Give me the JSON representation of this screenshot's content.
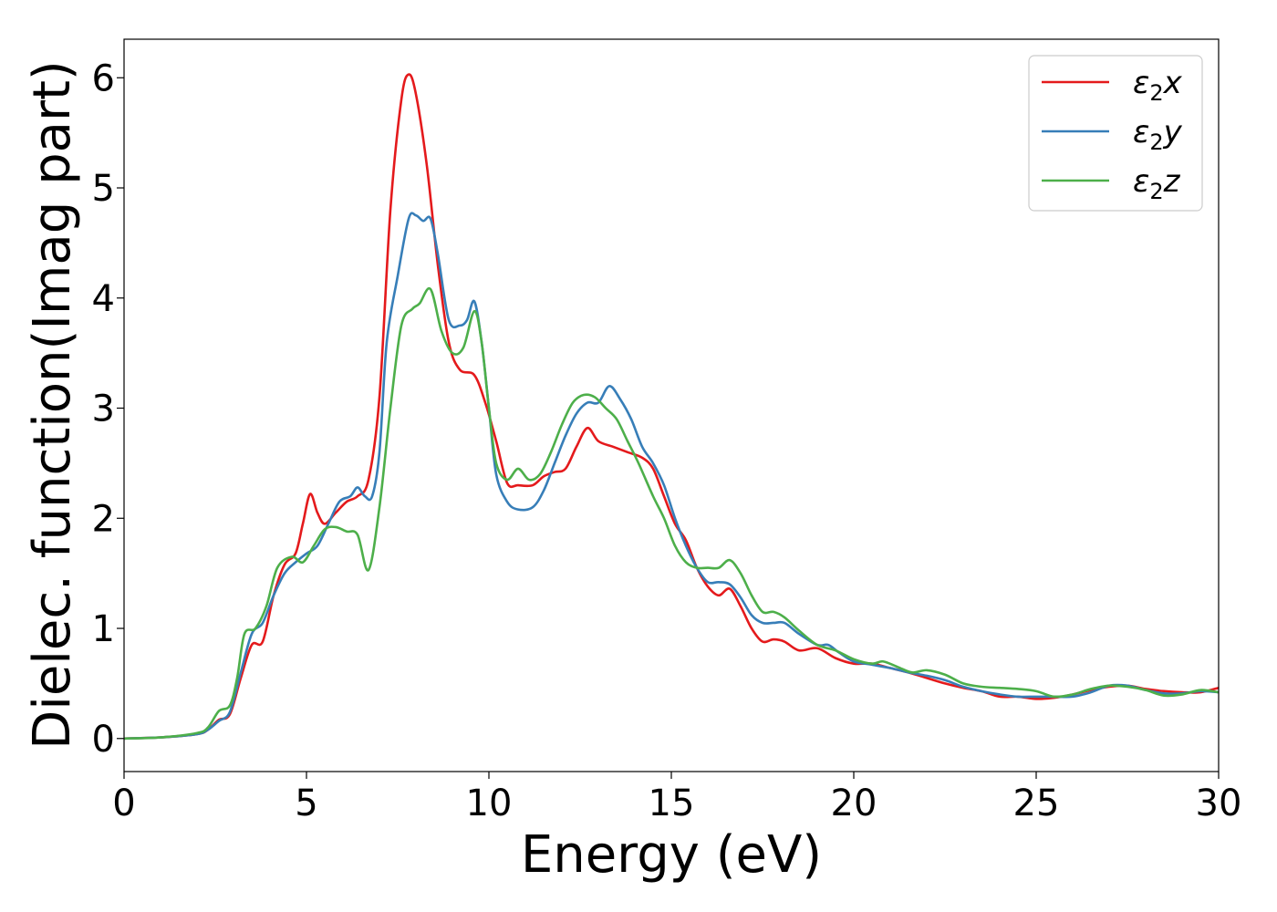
{
  "chart_data": {
    "type": "line",
    "title": "",
    "xlabel": "Energy (eV)",
    "ylabel": "Dielec. function(Imag part)",
    "xlim": [
      0,
      30
    ],
    "ylim": [
      -0.3,
      6.35
    ],
    "xticks": [
      "0",
      "5",
      "10",
      "15",
      "20",
      "25",
      "30"
    ],
    "yticks": [
      "0",
      "1",
      "2",
      "3",
      "4",
      "5",
      "6"
    ],
    "grid": false,
    "legend_position": "top-right",
    "series": [
      {
        "name": "ε2x",
        "legend": {
          "base": "ε",
          "sub": "2",
          "suffix": "x"
        },
        "color": "#e41a1c",
        "points": [
          [
            0,
            0
          ],
          [
            1,
            0.01
          ],
          [
            2,
            0.04
          ],
          [
            2.3,
            0.08
          ],
          [
            2.6,
            0.17
          ],
          [
            2.9,
            0.22
          ],
          [
            3.2,
            0.55
          ],
          [
            3.5,
            0.85
          ],
          [
            3.8,
            0.88
          ],
          [
            4.1,
            1.3
          ],
          [
            4.4,
            1.58
          ],
          [
            4.7,
            1.68
          ],
          [
            4.9,
            1.95
          ],
          [
            5.1,
            2.22
          ],
          [
            5.3,
            2.05
          ],
          [
            5.5,
            1.95
          ],
          [
            5.8,
            2.05
          ],
          [
            6.1,
            2.15
          ],
          [
            6.4,
            2.2
          ],
          [
            6.7,
            2.35
          ],
          [
            7.0,
            3.1
          ],
          [
            7.3,
            4.8
          ],
          [
            7.6,
            5.8
          ],
          [
            7.8,
            6.03
          ],
          [
            8.0,
            5.85
          ],
          [
            8.3,
            5.2
          ],
          [
            8.6,
            4.3
          ],
          [
            8.9,
            3.6
          ],
          [
            9.2,
            3.35
          ],
          [
            9.6,
            3.3
          ],
          [
            9.9,
            3.05
          ],
          [
            10.2,
            2.7
          ],
          [
            10.5,
            2.32
          ],
          [
            10.8,
            2.3
          ],
          [
            11.2,
            2.3
          ],
          [
            11.5,
            2.38
          ],
          [
            11.8,
            2.42
          ],
          [
            12.1,
            2.45
          ],
          [
            12.4,
            2.65
          ],
          [
            12.7,
            2.82
          ],
          [
            13.0,
            2.7
          ],
          [
            13.4,
            2.65
          ],
          [
            13.8,
            2.6
          ],
          [
            14.2,
            2.55
          ],
          [
            14.5,
            2.45
          ],
          [
            14.8,
            2.2
          ],
          [
            15.1,
            1.95
          ],
          [
            15.4,
            1.8
          ],
          [
            15.7,
            1.55
          ],
          [
            16.0,
            1.38
          ],
          [
            16.3,
            1.3
          ],
          [
            16.6,
            1.36
          ],
          [
            16.9,
            1.2
          ],
          [
            17.2,
            1.0
          ],
          [
            17.5,
            0.88
          ],
          [
            17.8,
            0.9
          ],
          [
            18.1,
            0.88
          ],
          [
            18.5,
            0.8
          ],
          [
            19.0,
            0.82
          ],
          [
            19.5,
            0.73
          ],
          [
            20.0,
            0.68
          ],
          [
            20.5,
            0.68
          ],
          [
            21.0,
            0.64
          ],
          [
            21.5,
            0.6
          ],
          [
            22.0,
            0.55
          ],
          [
            22.5,
            0.5
          ],
          [
            23.0,
            0.46
          ],
          [
            23.5,
            0.43
          ],
          [
            24.0,
            0.38
          ],
          [
            24.5,
            0.38
          ],
          [
            25.0,
            0.36
          ],
          [
            25.5,
            0.37
          ],
          [
            26.0,
            0.4
          ],
          [
            26.5,
            0.44
          ],
          [
            27.0,
            0.47
          ],
          [
            27.5,
            0.48
          ],
          [
            28.0,
            0.45
          ],
          [
            28.5,
            0.43
          ],
          [
            29.0,
            0.42
          ],
          [
            29.5,
            0.42
          ],
          [
            30.0,
            0.46
          ]
        ]
      },
      {
        "name": "ε2y",
        "legend": {
          "base": "ε",
          "sub": "2",
          "suffix": "y"
        },
        "color": "#377eb8",
        "points": [
          [
            0,
            0
          ],
          [
            1,
            0.01
          ],
          [
            2,
            0.04
          ],
          [
            2.3,
            0.08
          ],
          [
            2.6,
            0.16
          ],
          [
            2.9,
            0.24
          ],
          [
            3.2,
            0.6
          ],
          [
            3.5,
            0.95
          ],
          [
            3.8,
            1.05
          ],
          [
            4.1,
            1.3
          ],
          [
            4.4,
            1.5
          ],
          [
            4.7,
            1.6
          ],
          [
            5.0,
            1.68
          ],
          [
            5.3,
            1.75
          ],
          [
            5.6,
            1.95
          ],
          [
            5.9,
            2.15
          ],
          [
            6.2,
            2.2
          ],
          [
            6.4,
            2.28
          ],
          [
            6.6,
            2.2
          ],
          [
            6.8,
            2.2
          ],
          [
            7.0,
            2.6
          ],
          [
            7.2,
            3.6
          ],
          [
            7.5,
            4.2
          ],
          [
            7.8,
            4.72
          ],
          [
            8.0,
            4.75
          ],
          [
            8.2,
            4.7
          ],
          [
            8.4,
            4.72
          ],
          [
            8.6,
            4.4
          ],
          [
            8.9,
            3.8
          ],
          [
            9.2,
            3.75
          ],
          [
            9.4,
            3.8
          ],
          [
            9.6,
            3.97
          ],
          [
            9.8,
            3.6
          ],
          [
            10.0,
            3.0
          ],
          [
            10.2,
            2.4
          ],
          [
            10.5,
            2.15
          ],
          [
            10.8,
            2.08
          ],
          [
            11.2,
            2.1
          ],
          [
            11.5,
            2.25
          ],
          [
            11.8,
            2.5
          ],
          [
            12.1,
            2.75
          ],
          [
            12.4,
            2.95
          ],
          [
            12.7,
            3.05
          ],
          [
            13.0,
            3.05
          ],
          [
            13.3,
            3.2
          ],
          [
            13.6,
            3.08
          ],
          [
            13.9,
            2.9
          ],
          [
            14.2,
            2.65
          ],
          [
            14.5,
            2.5
          ],
          [
            14.8,
            2.3
          ],
          [
            15.1,
            2.0
          ],
          [
            15.4,
            1.75
          ],
          [
            15.7,
            1.55
          ],
          [
            16.0,
            1.42
          ],
          [
            16.3,
            1.42
          ],
          [
            16.6,
            1.4
          ],
          [
            16.9,
            1.28
          ],
          [
            17.2,
            1.12
          ],
          [
            17.5,
            1.05
          ],
          [
            17.8,
            1.05
          ],
          [
            18.1,
            1.05
          ],
          [
            18.5,
            0.95
          ],
          [
            19.0,
            0.85
          ],
          [
            19.3,
            0.85
          ],
          [
            19.6,
            0.78
          ],
          [
            20.0,
            0.7
          ],
          [
            20.5,
            0.67
          ],
          [
            21.0,
            0.64
          ],
          [
            21.5,
            0.6
          ],
          [
            22.0,
            0.57
          ],
          [
            22.5,
            0.53
          ],
          [
            23.0,
            0.47
          ],
          [
            23.5,
            0.43
          ],
          [
            24.0,
            0.4
          ],
          [
            24.5,
            0.38
          ],
          [
            25.0,
            0.38
          ],
          [
            25.5,
            0.38
          ],
          [
            26.0,
            0.38
          ],
          [
            26.5,
            0.42
          ],
          [
            27.0,
            0.48
          ],
          [
            27.5,
            0.48
          ],
          [
            28.0,
            0.44
          ],
          [
            28.5,
            0.41
          ],
          [
            29.0,
            0.41
          ],
          [
            29.5,
            0.43
          ],
          [
            30.0,
            0.42
          ]
        ]
      },
      {
        "name": "ε2z",
        "legend": {
          "base": "ε",
          "sub": "2",
          "suffix": "z"
        },
        "color": "#4daf4a",
        "points": [
          [
            0,
            0
          ],
          [
            1,
            0.01
          ],
          [
            2,
            0.05
          ],
          [
            2.3,
            0.1
          ],
          [
            2.6,
            0.25
          ],
          [
            2.9,
            0.3
          ],
          [
            3.1,
            0.55
          ],
          [
            3.3,
            0.95
          ],
          [
            3.6,
            1.0
          ],
          [
            3.9,
            1.2
          ],
          [
            4.2,
            1.55
          ],
          [
            4.6,
            1.65
          ],
          [
            4.9,
            1.6
          ],
          [
            5.2,
            1.75
          ],
          [
            5.5,
            1.9
          ],
          [
            5.8,
            1.92
          ],
          [
            6.1,
            1.88
          ],
          [
            6.4,
            1.85
          ],
          [
            6.7,
            1.53
          ],
          [
            7.0,
            2.1
          ],
          [
            7.3,
            3.0
          ],
          [
            7.6,
            3.75
          ],
          [
            7.9,
            3.9
          ],
          [
            8.1,
            3.95
          ],
          [
            8.4,
            4.08
          ],
          [
            8.7,
            3.7
          ],
          [
            9.0,
            3.5
          ],
          [
            9.3,
            3.55
          ],
          [
            9.6,
            3.88
          ],
          [
            9.8,
            3.6
          ],
          [
            10.0,
            3.0
          ],
          [
            10.2,
            2.5
          ],
          [
            10.5,
            2.35
          ],
          [
            10.8,
            2.45
          ],
          [
            11.1,
            2.35
          ],
          [
            11.4,
            2.4
          ],
          [
            11.7,
            2.6
          ],
          [
            12.0,
            2.85
          ],
          [
            12.3,
            3.05
          ],
          [
            12.6,
            3.12
          ],
          [
            12.9,
            3.1
          ],
          [
            13.2,
            3.0
          ],
          [
            13.5,
            2.9
          ],
          [
            13.8,
            2.7
          ],
          [
            14.1,
            2.5
          ],
          [
            14.5,
            2.2
          ],
          [
            14.8,
            2.0
          ],
          [
            15.1,
            1.75
          ],
          [
            15.4,
            1.6
          ],
          [
            15.7,
            1.55
          ],
          [
            16.0,
            1.55
          ],
          [
            16.3,
            1.55
          ],
          [
            16.6,
            1.62
          ],
          [
            16.9,
            1.5
          ],
          [
            17.2,
            1.3
          ],
          [
            17.5,
            1.15
          ],
          [
            17.8,
            1.15
          ],
          [
            18.1,
            1.1
          ],
          [
            18.5,
            0.98
          ],
          [
            19.0,
            0.85
          ],
          [
            19.5,
            0.8
          ],
          [
            20.0,
            0.72
          ],
          [
            20.5,
            0.68
          ],
          [
            20.8,
            0.7
          ],
          [
            21.2,
            0.65
          ],
          [
            21.6,
            0.6
          ],
          [
            22.0,
            0.62
          ],
          [
            22.5,
            0.58
          ],
          [
            23.0,
            0.5
          ],
          [
            23.5,
            0.47
          ],
          [
            24.0,
            0.46
          ],
          [
            24.5,
            0.45
          ],
          [
            25.0,
            0.43
          ],
          [
            25.5,
            0.38
          ],
          [
            26.0,
            0.4
          ],
          [
            26.5,
            0.45
          ],
          [
            27.0,
            0.48
          ],
          [
            27.5,
            0.47
          ],
          [
            28.0,
            0.44
          ],
          [
            28.5,
            0.39
          ],
          [
            29.0,
            0.4
          ],
          [
            29.5,
            0.44
          ],
          [
            30.0,
            0.42
          ]
        ]
      }
    ]
  }
}
